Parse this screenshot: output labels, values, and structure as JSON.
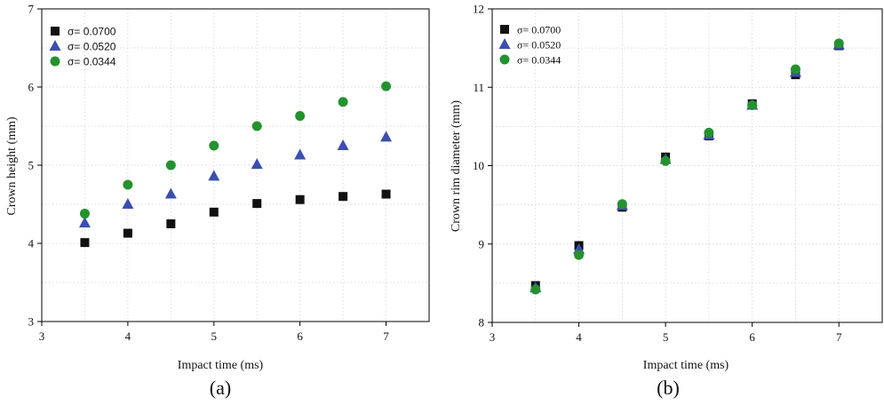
{
  "chart_data": [
    {
      "type": "scatter",
      "panel_label": "(a)",
      "xlabel": "Impact time (ms)",
      "ylabel": "Crown height (mm)",
      "xlim": [
        3,
        7.5
      ],
      "ylim": [
        3,
        7
      ],
      "xticks": [
        "3",
        "4",
        "5",
        "6",
        "7"
      ],
      "yticks": [
        "3",
        "4",
        "5",
        "6",
        "7"
      ],
      "x": [
        3.5,
        4.0,
        4.5,
        5.0,
        5.5,
        6.0,
        6.5,
        7.0
      ],
      "legend_position": "top-left",
      "grid": true,
      "series": [
        {
          "name": "σ= 0.0700",
          "marker": "square",
          "color": "#111111",
          "values": [
            4.01,
            4.13,
            4.25,
            4.4,
            4.51,
            4.56,
            4.6,
            4.63
          ]
        },
        {
          "name": "σ= 0.0520",
          "marker": "triangle",
          "color": "#3b4fb0",
          "values": [
            4.26,
            4.5,
            4.63,
            4.86,
            5.01,
            5.13,
            5.25,
            5.36
          ]
        },
        {
          "name": "σ= 0.0344",
          "marker": "circle",
          "color": "#24922f",
          "values": [
            4.38,
            4.75,
            5.0,
            5.25,
            5.5,
            5.63,
            5.81,
            6.01
          ]
        }
      ]
    },
    {
      "type": "scatter",
      "panel_label": "(b)",
      "xlabel": "Impact time (ms)",
      "ylabel": "Crown rim diameter (mm)",
      "xlim": [
        3,
        7.5
      ],
      "ylim": [
        8,
        12
      ],
      "xticks": [
        "3",
        "4",
        "5",
        "6",
        "7"
      ],
      "yticks": [
        "8",
        "9",
        "10",
        "11",
        "12"
      ],
      "x": [
        3.5,
        4.0,
        4.5,
        5.0,
        5.5,
        6.0,
        6.5,
        7.0
      ],
      "legend_position": "top-left",
      "grid": true,
      "series": [
        {
          "name": "σ= 0.0700",
          "marker": "square",
          "color": "#111111",
          "values": [
            8.47,
            8.98,
            9.47,
            10.11,
            10.38,
            10.79,
            11.16,
            11.53
          ]
        },
        {
          "name": "σ= 0.0520",
          "marker": "triangle",
          "color": "#3b4fb0",
          "values": [
            8.44,
            8.93,
            9.49,
            10.08,
            10.39,
            10.77,
            11.19,
            11.54
          ]
        },
        {
          "name": "σ= 0.0344",
          "marker": "circle",
          "color": "#24922f",
          "values": [
            8.42,
            8.86,
            9.51,
            10.06,
            10.42,
            10.77,
            11.23,
            11.56
          ]
        }
      ]
    }
  ]
}
